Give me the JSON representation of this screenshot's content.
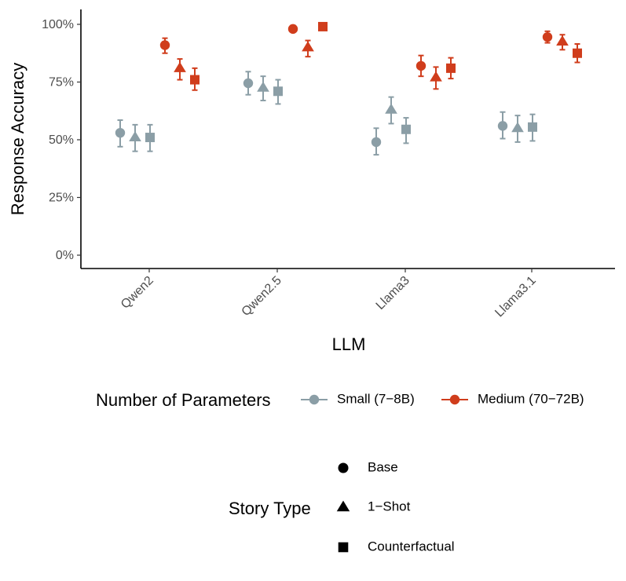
{
  "colors": {
    "small": "#8b9ea6",
    "medium": "#d03d1c"
  },
  "chart_data": {
    "type": "scatter",
    "xlabel": "LLM",
    "ylabel": "Response Accuracy",
    "categories": [
      "Qwen2",
      "Qwen2.5",
      "Llama3",
      "Llama3.1"
    ],
    "ylim": [
      0,
      100
    ],
    "yticks": [
      0,
      25,
      50,
      75,
      100
    ],
    "ytick_labels": [
      "0%",
      "25%",
      "50%",
      "75%",
      "100%"
    ],
    "grid": false,
    "series": [
      {
        "name": "Small (7–8B)",
        "group": "small",
        "shape": "Base",
        "values": [
          53,
          74.5,
          49,
          56
        ],
        "err_low": [
          47,
          69.5,
          43.5,
          50.5
        ],
        "err_high": [
          58.5,
          79.5,
          55,
          62
        ]
      },
      {
        "name": "Small (7–8B)",
        "group": "small",
        "shape": "1–Shot",
        "values": [
          51,
          72.5,
          63,
          55
        ],
        "err_low": [
          45,
          67,
          57,
          49
        ],
        "err_high": [
          56.5,
          77.5,
          68.5,
          60.5
        ]
      },
      {
        "name": "Small (7–8B)",
        "group": "small",
        "shape": "Counterfactual",
        "values": [
          51,
          71,
          54.5,
          55.5
        ],
        "err_low": [
          45,
          65.5,
          48.5,
          49.5
        ],
        "err_high": [
          56.5,
          76,
          59.5,
          61
        ]
      },
      {
        "name": "Medium (70–72B)",
        "group": "medium",
        "shape": "Base",
        "values": [
          91,
          98,
          82,
          94.5
        ],
        "err_low": [
          87.5,
          98,
          77.5,
          92
        ],
        "err_high": [
          94,
          98,
          86.5,
          97
        ]
      },
      {
        "name": "Medium (70–72B)",
        "group": "medium",
        "shape": "1–Shot",
        "values": [
          81,
          90,
          77,
          92.5
        ],
        "err_low": [
          76,
          86,
          72,
          89
        ],
        "err_high": [
          85,
          93,
          81.5,
          95.5
        ]
      },
      {
        "name": "Medium (70–72B)",
        "group": "medium",
        "shape": "Counterfactual",
        "values": [
          76,
          99,
          81,
          87.5
        ],
        "err_low": [
          71.5,
          99,
          76.5,
          83.5
        ],
        "err_high": [
          81,
          99,
          85.5,
          91.5
        ]
      }
    ]
  },
  "legend": {
    "parameters_title": "Number of Parameters",
    "parameters_items": [
      {
        "label": "Small (7−8B)",
        "group": "small"
      },
      {
        "label": "Medium (70−72B)",
        "group": "medium"
      }
    ],
    "story_title": "Story Type",
    "story_items": [
      {
        "label": "Base",
        "shape": "circle"
      },
      {
        "label": "1−Shot",
        "shape": "triangle"
      },
      {
        "label": "Counterfactual",
        "shape": "square"
      }
    ]
  }
}
